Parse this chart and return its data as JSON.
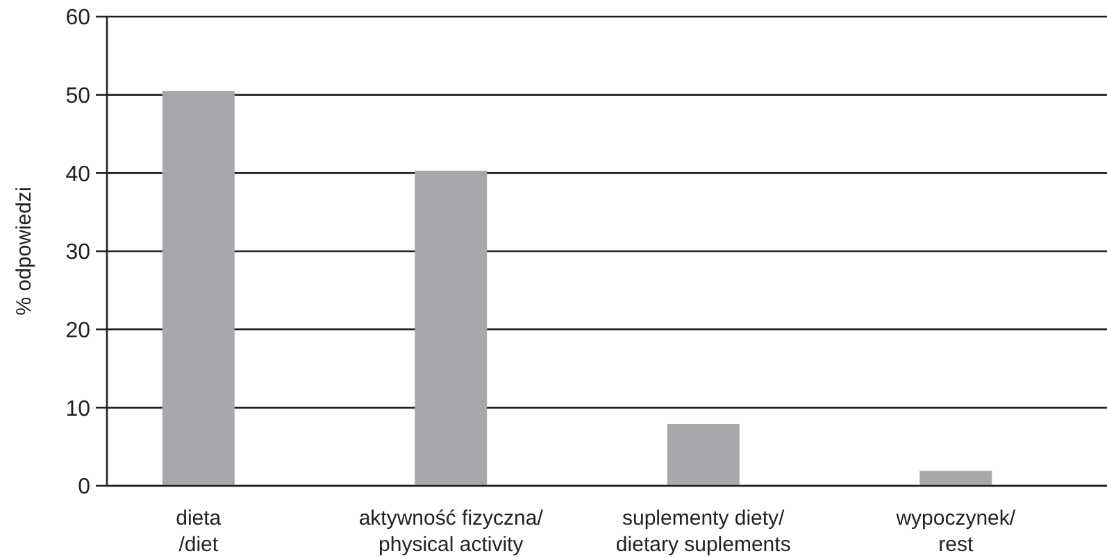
{
  "chart_data": {
    "type": "bar",
    "ylabel": "% odpowiedzi",
    "categories": [
      "dieta\n/diet",
      "aktywność fizyczna/\nphysical activity",
      "suplementy diety/\ndietary suplements",
      "wypoczynek/\nrest"
    ],
    "values": [
      50.5,
      40.3,
      7.9,
      1.9
    ],
    "color": "#a7a8ab",
    "ylim": [
      0,
      60
    ],
    "yticks": [
      0,
      10,
      20,
      30,
      40,
      50,
      60
    ],
    "grid": "y"
  }
}
